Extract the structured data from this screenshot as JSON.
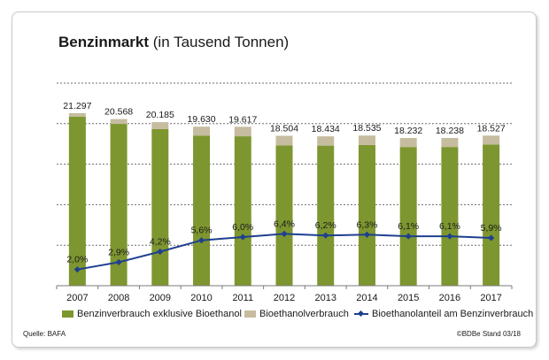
{
  "title": {
    "bold": "Benzinmarkt",
    "rest": " (in Tausend Tonnen)"
  },
  "source": "Quelle:  BAFA",
  "footer_right": "©BDBe  Stand 03/18",
  "colors": {
    "green": "#7d962f",
    "tan": "#c6bc9f",
    "line": "#1f3f8f"
  },
  "chart_data": {
    "type": "bar+line",
    "title": "Benzinmarkt (in Tausend Tonnen)",
    "categories": [
      "2007",
      "2008",
      "2009",
      "2010",
      "2011",
      "2012",
      "2013",
      "2014",
      "2015",
      "2016",
      "2017"
    ],
    "totals": [
      21297,
      20568,
      20185,
      19630,
      19617,
      18504,
      18434,
      18535,
      18232,
      18238,
      18527
    ],
    "total_labels": [
      "21.297",
      "20.568",
      "20.185",
      "19.630",
      "19.617",
      "18.504",
      "18.434",
      "18.535",
      "18.232",
      "18.238",
      "18.527"
    ],
    "share_labels": [
      "2,0%",
      "2,9%",
      "4,2%",
      "5,6%",
      "6,0%",
      "6,4%",
      "6,2%",
      "6,3%",
      "6,1%",
      "6,1%",
      "5,9%"
    ],
    "series": [
      {
        "name": "Benzinverbrauch exklusive Bioethanol",
        "kind": "bar",
        "color": "#7d962f",
        "values": [
          20871,
          19972,
          19337,
          18531,
          18440,
          17320,
          17291,
          17367,
          17120,
          17125,
          17434
        ]
      },
      {
        "name": "Bioethanolverbrauch",
        "kind": "bar-stacked",
        "color": "#c6bc9f",
        "values": [
          426,
          596,
          848,
          1099,
          1177,
          1184,
          1143,
          1168,
          1112,
          1113,
          1093
        ]
      },
      {
        "name": "Bioethanolanteil am Benzinverbrauch",
        "kind": "line",
        "color": "#1f3f8f",
        "values": [
          2.0,
          2.9,
          4.2,
          5.6,
          6.0,
          6.4,
          6.2,
          6.3,
          6.1,
          6.1,
          5.9
        ]
      }
    ],
    "ylim_bars": [
      0,
      25000
    ],
    "ylim_line": [
      0,
      25
    ],
    "grid": true,
    "legend": "bottom"
  }
}
